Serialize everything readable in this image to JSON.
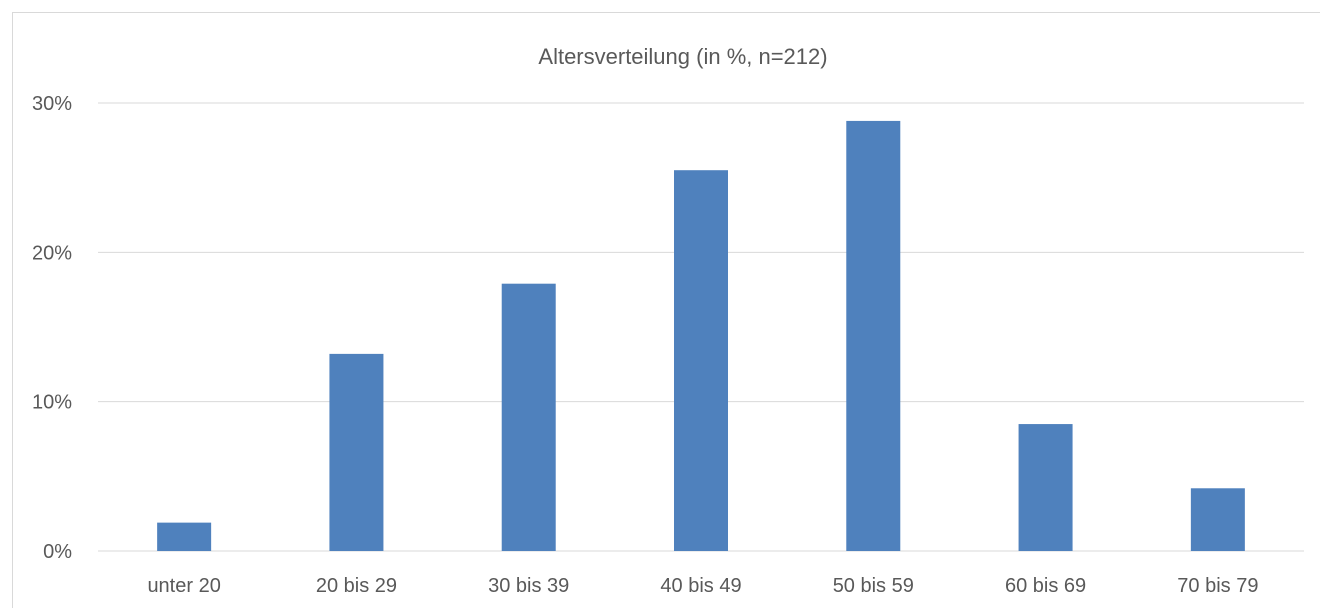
{
  "chart_data": {
    "type": "bar",
    "title": "Altersverteilung (in %, n=212)",
    "xlabel": "",
    "ylabel": "",
    "categories": [
      "unter 20",
      "20 bis 29",
      "30 bis 39",
      "40 bis 49",
      "50 bis 59",
      "60 bis 69",
      "70 bis 79"
    ],
    "values": [
      1.9,
      13.2,
      17.9,
      25.5,
      28.8,
      8.5,
      4.2
    ],
    "ylim": [
      0,
      30
    ],
    "yticks": [
      0,
      10,
      20,
      30
    ],
    "ytick_labels": [
      "0%",
      "10%",
      "20%",
      "30%"
    ],
    "grid": true,
    "legend": "none",
    "bar_color": "#4F81BD",
    "grid_color": "#d9d9d9"
  }
}
